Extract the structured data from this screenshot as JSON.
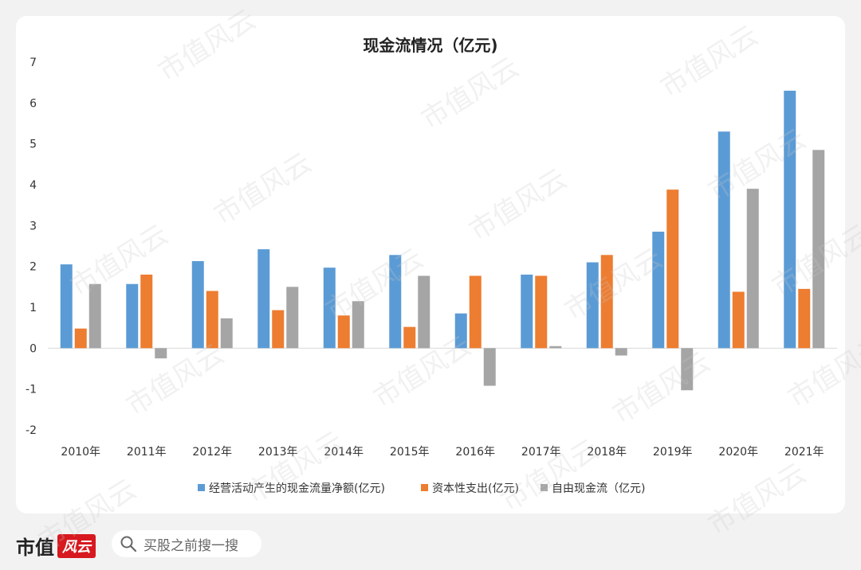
{
  "chart_data": {
    "type": "bar",
    "title": "现金流情况（亿元)",
    "categories": [
      "2010年",
      "2011年",
      "2012年",
      "2013年",
      "2014年",
      "2015年",
      "2016年",
      "2017年",
      "2018年",
      "2019年",
      "2020年",
      "2021年"
    ],
    "series": [
      {
        "name": "经营活动产生的现金流量净额(亿元)",
        "color": "#5b9bd5",
        "values": [
          2.05,
          1.57,
          2.13,
          2.42,
          1.97,
          2.28,
          0.85,
          1.8,
          2.1,
          2.85,
          5.3,
          6.3
        ]
      },
      {
        "name": "资本性支出(亿元)",
        "color": "#ed7d31",
        "values": [
          0.48,
          1.8,
          1.4,
          0.93,
          0.8,
          0.52,
          1.77,
          1.77,
          2.28,
          3.88,
          1.38,
          1.45
        ]
      },
      {
        "name": "自由现金流（亿元)",
        "color": "#a5a5a5",
        "values": [
          1.57,
          -0.25,
          0.73,
          1.5,
          1.15,
          1.77,
          -0.92,
          0.05,
          -0.18,
          -1.03,
          3.9,
          4.85
        ]
      }
    ],
    "xlabel": "",
    "ylabel": "",
    "ylim": [
      -2,
      7
    ],
    "yticks": [
      7,
      6,
      5,
      4,
      3,
      2,
      1,
      0,
      -1,
      -2
    ],
    "grid": false,
    "legend": "bottom"
  },
  "footer": {
    "brand": "市值",
    "brand_badge": "风云",
    "search_text": "买股之前搜一搜"
  },
  "watermark_text": "市值风云"
}
